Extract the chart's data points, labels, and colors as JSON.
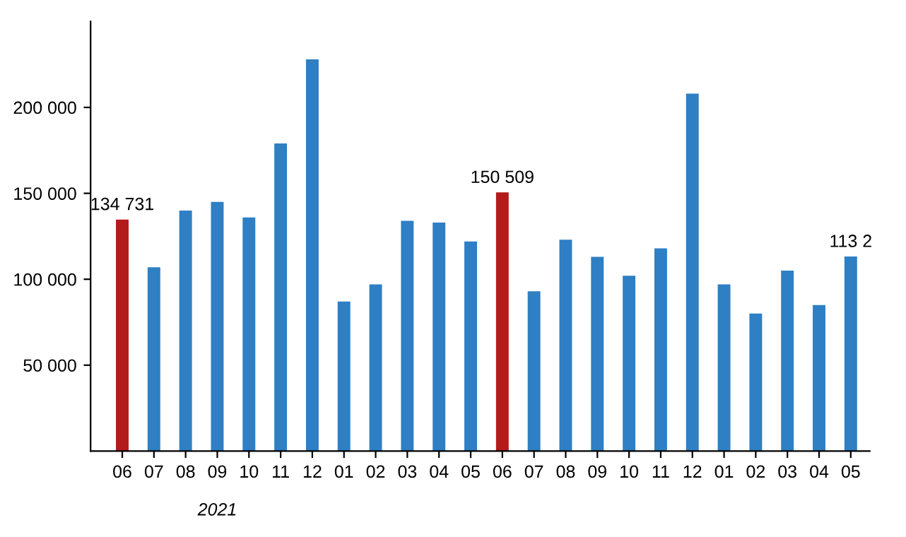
{
  "chart_data": {
    "type": "bar",
    "categories": [
      "06",
      "07",
      "08",
      "09",
      "10",
      "11",
      "12",
      "01",
      "02",
      "03",
      "04",
      "05",
      "06",
      "07",
      "08",
      "09",
      "10",
      "11",
      "12",
      "01",
      "02",
      "03",
      "04",
      "05"
    ],
    "values": [
      134731,
      107000,
      140000,
      145000,
      136000,
      179000,
      228000,
      87000,
      97000,
      134000,
      133000,
      122000,
      150509,
      93000,
      123000,
      113000,
      102000,
      118000,
      208000,
      97000,
      80000,
      105000,
      85000,
      113200
    ],
    "colors": [
      "#b31b1b",
      "#2e7fc4",
      "#2e7fc4",
      "#2e7fc4",
      "#2e7fc4",
      "#2e7fc4",
      "#2e7fc4",
      "#2e7fc4",
      "#2e7fc4",
      "#2e7fc4",
      "#2e7fc4",
      "#2e7fc4",
      "#b31b1b",
      "#2e7fc4",
      "#2e7fc4",
      "#2e7fc4",
      "#2e7fc4",
      "#2e7fc4",
      "#2e7fc4",
      "#2e7fc4",
      "#2e7fc4",
      "#2e7fc4",
      "#2e7fc4",
      "#2e7fc4"
    ],
    "value_labels": [
      "134 731",
      null,
      null,
      null,
      null,
      null,
      null,
      null,
      null,
      null,
      null,
      null,
      "150 509",
      null,
      null,
      null,
      null,
      null,
      null,
      null,
      null,
      null,
      null,
      null
    ],
    "annotations": [
      "2021",
      {
        "text": "113 2",
        "y": 113200
      }
    ],
    "ylim": [
      0,
      250000
    ],
    "yticks": [
      {
        "value": 50000,
        "label": "50 000"
      },
      {
        "value": 100000,
        "label": "100 000"
      },
      {
        "value": 150000,
        "label": "150 000"
      },
      {
        "value": 200000,
        "label": "200 000"
      }
    ],
    "grid": false,
    "legend": false
  }
}
